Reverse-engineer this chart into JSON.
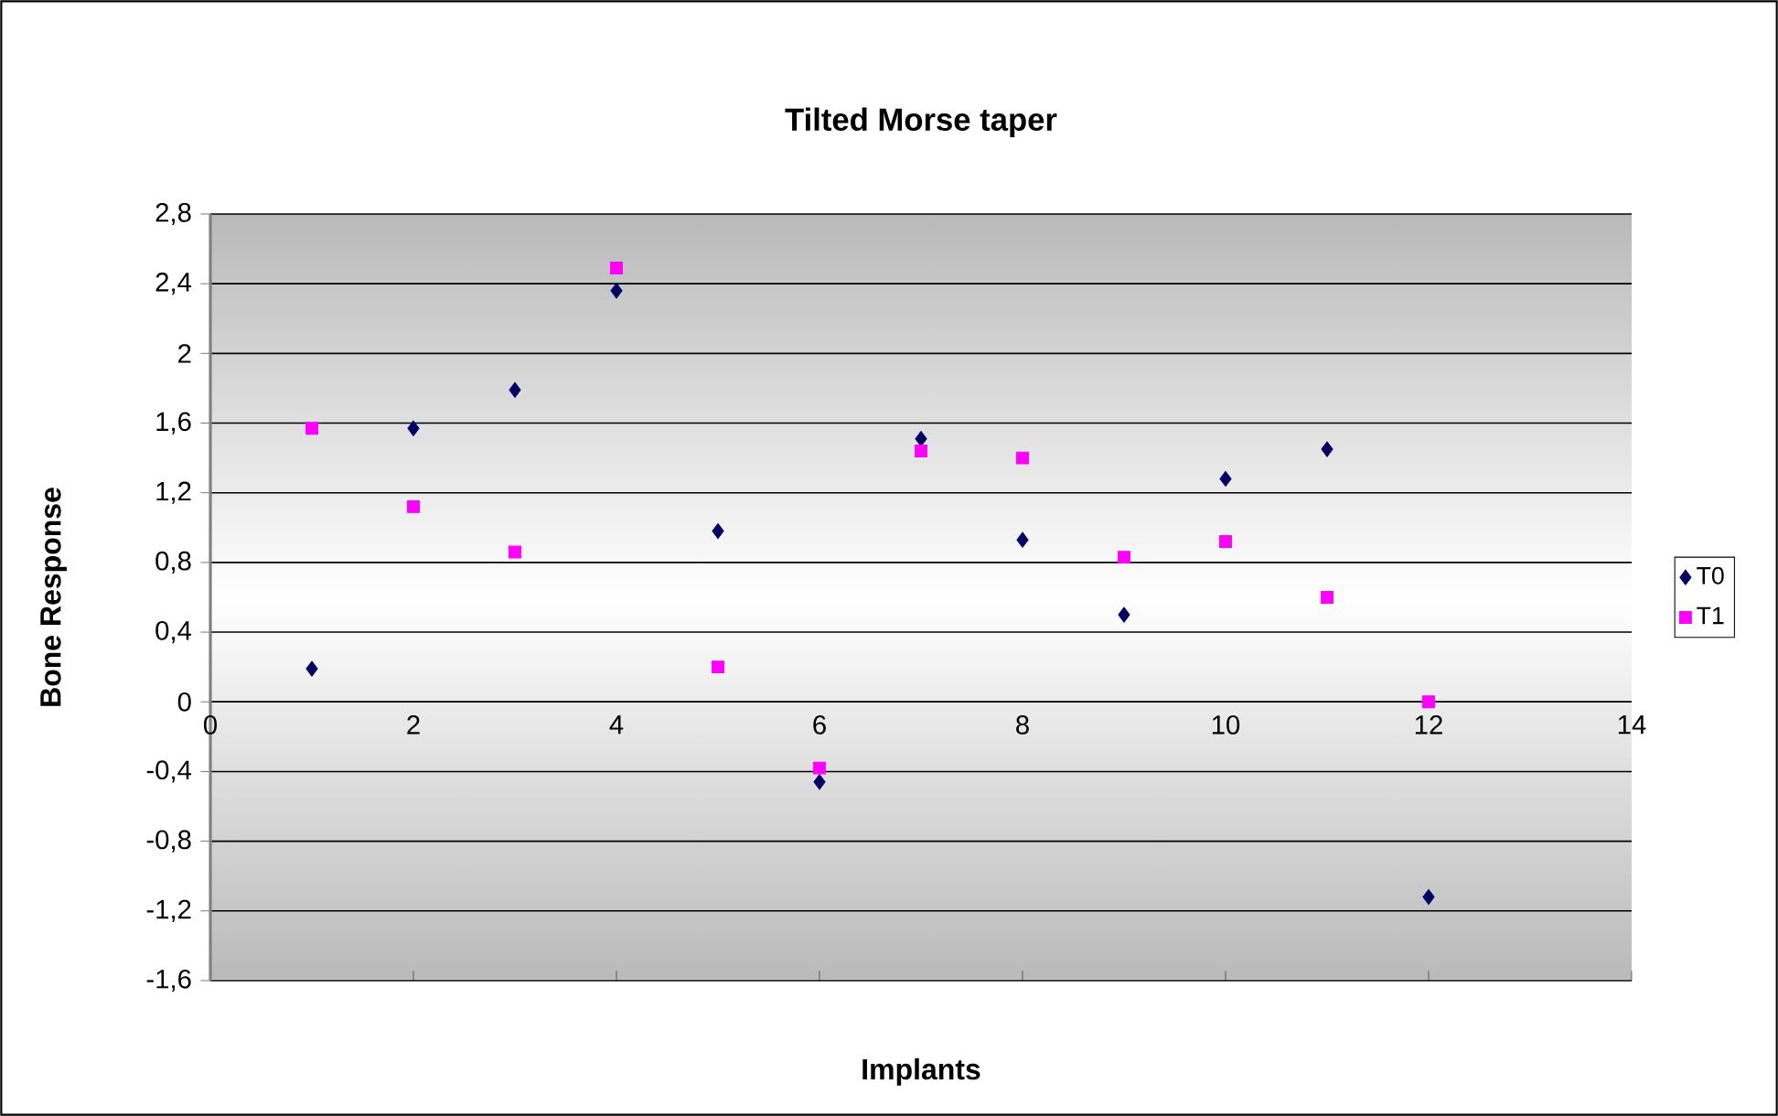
{
  "chart_data": {
    "type": "scatter",
    "title": "Tilted Morse taper",
    "xlabel": "Implants",
    "ylabel": "Bone Response",
    "xlim": [
      0,
      14
    ],
    "xticks": [
      0,
      2,
      4,
      6,
      8,
      10,
      12,
      14
    ],
    "ylim": [
      -1.6,
      2.8
    ],
    "yticks": [
      {
        "value": -1.6,
        "label": "-1,6"
      },
      {
        "value": -1.2,
        "label": "-1,2"
      },
      {
        "value": -0.8,
        "label": "-0,8"
      },
      {
        "value": -0.4,
        "label": "-0,4"
      },
      {
        "value": 0,
        "label": "0"
      },
      {
        "value": 0.4,
        "label": "0,4"
      },
      {
        "value": 0.8,
        "label": "0,8"
      },
      {
        "value": 1.2,
        "label": "1,2"
      },
      {
        "value": 1.6,
        "label": "1,6"
      },
      {
        "value": 2,
        "label": "2"
      },
      {
        "value": 2.4,
        "label": "2,4"
      },
      {
        "value": 2.8,
        "label": "2,8"
      }
    ],
    "grid": "y",
    "legend": "right",
    "x": [
      1,
      2,
      3,
      4,
      5,
      6,
      7,
      8,
      9,
      10,
      11,
      12
    ],
    "series": [
      {
        "name": "T0",
        "color": "#000066",
        "marker": "diamond",
        "values": [
          0.19,
          1.57,
          1.79,
          2.36,
          0.98,
          -0.46,
          1.51,
          0.93,
          0.5,
          1.28,
          1.45,
          -1.12
        ]
      },
      {
        "name": "T1",
        "color": "#ff00ff",
        "marker": "square",
        "values": [
          1.57,
          1.12,
          0.86,
          2.49,
          0.2,
          -0.38,
          1.44,
          1.4,
          0.83,
          0.92,
          0.6,
          0
        ]
      }
    ]
  }
}
